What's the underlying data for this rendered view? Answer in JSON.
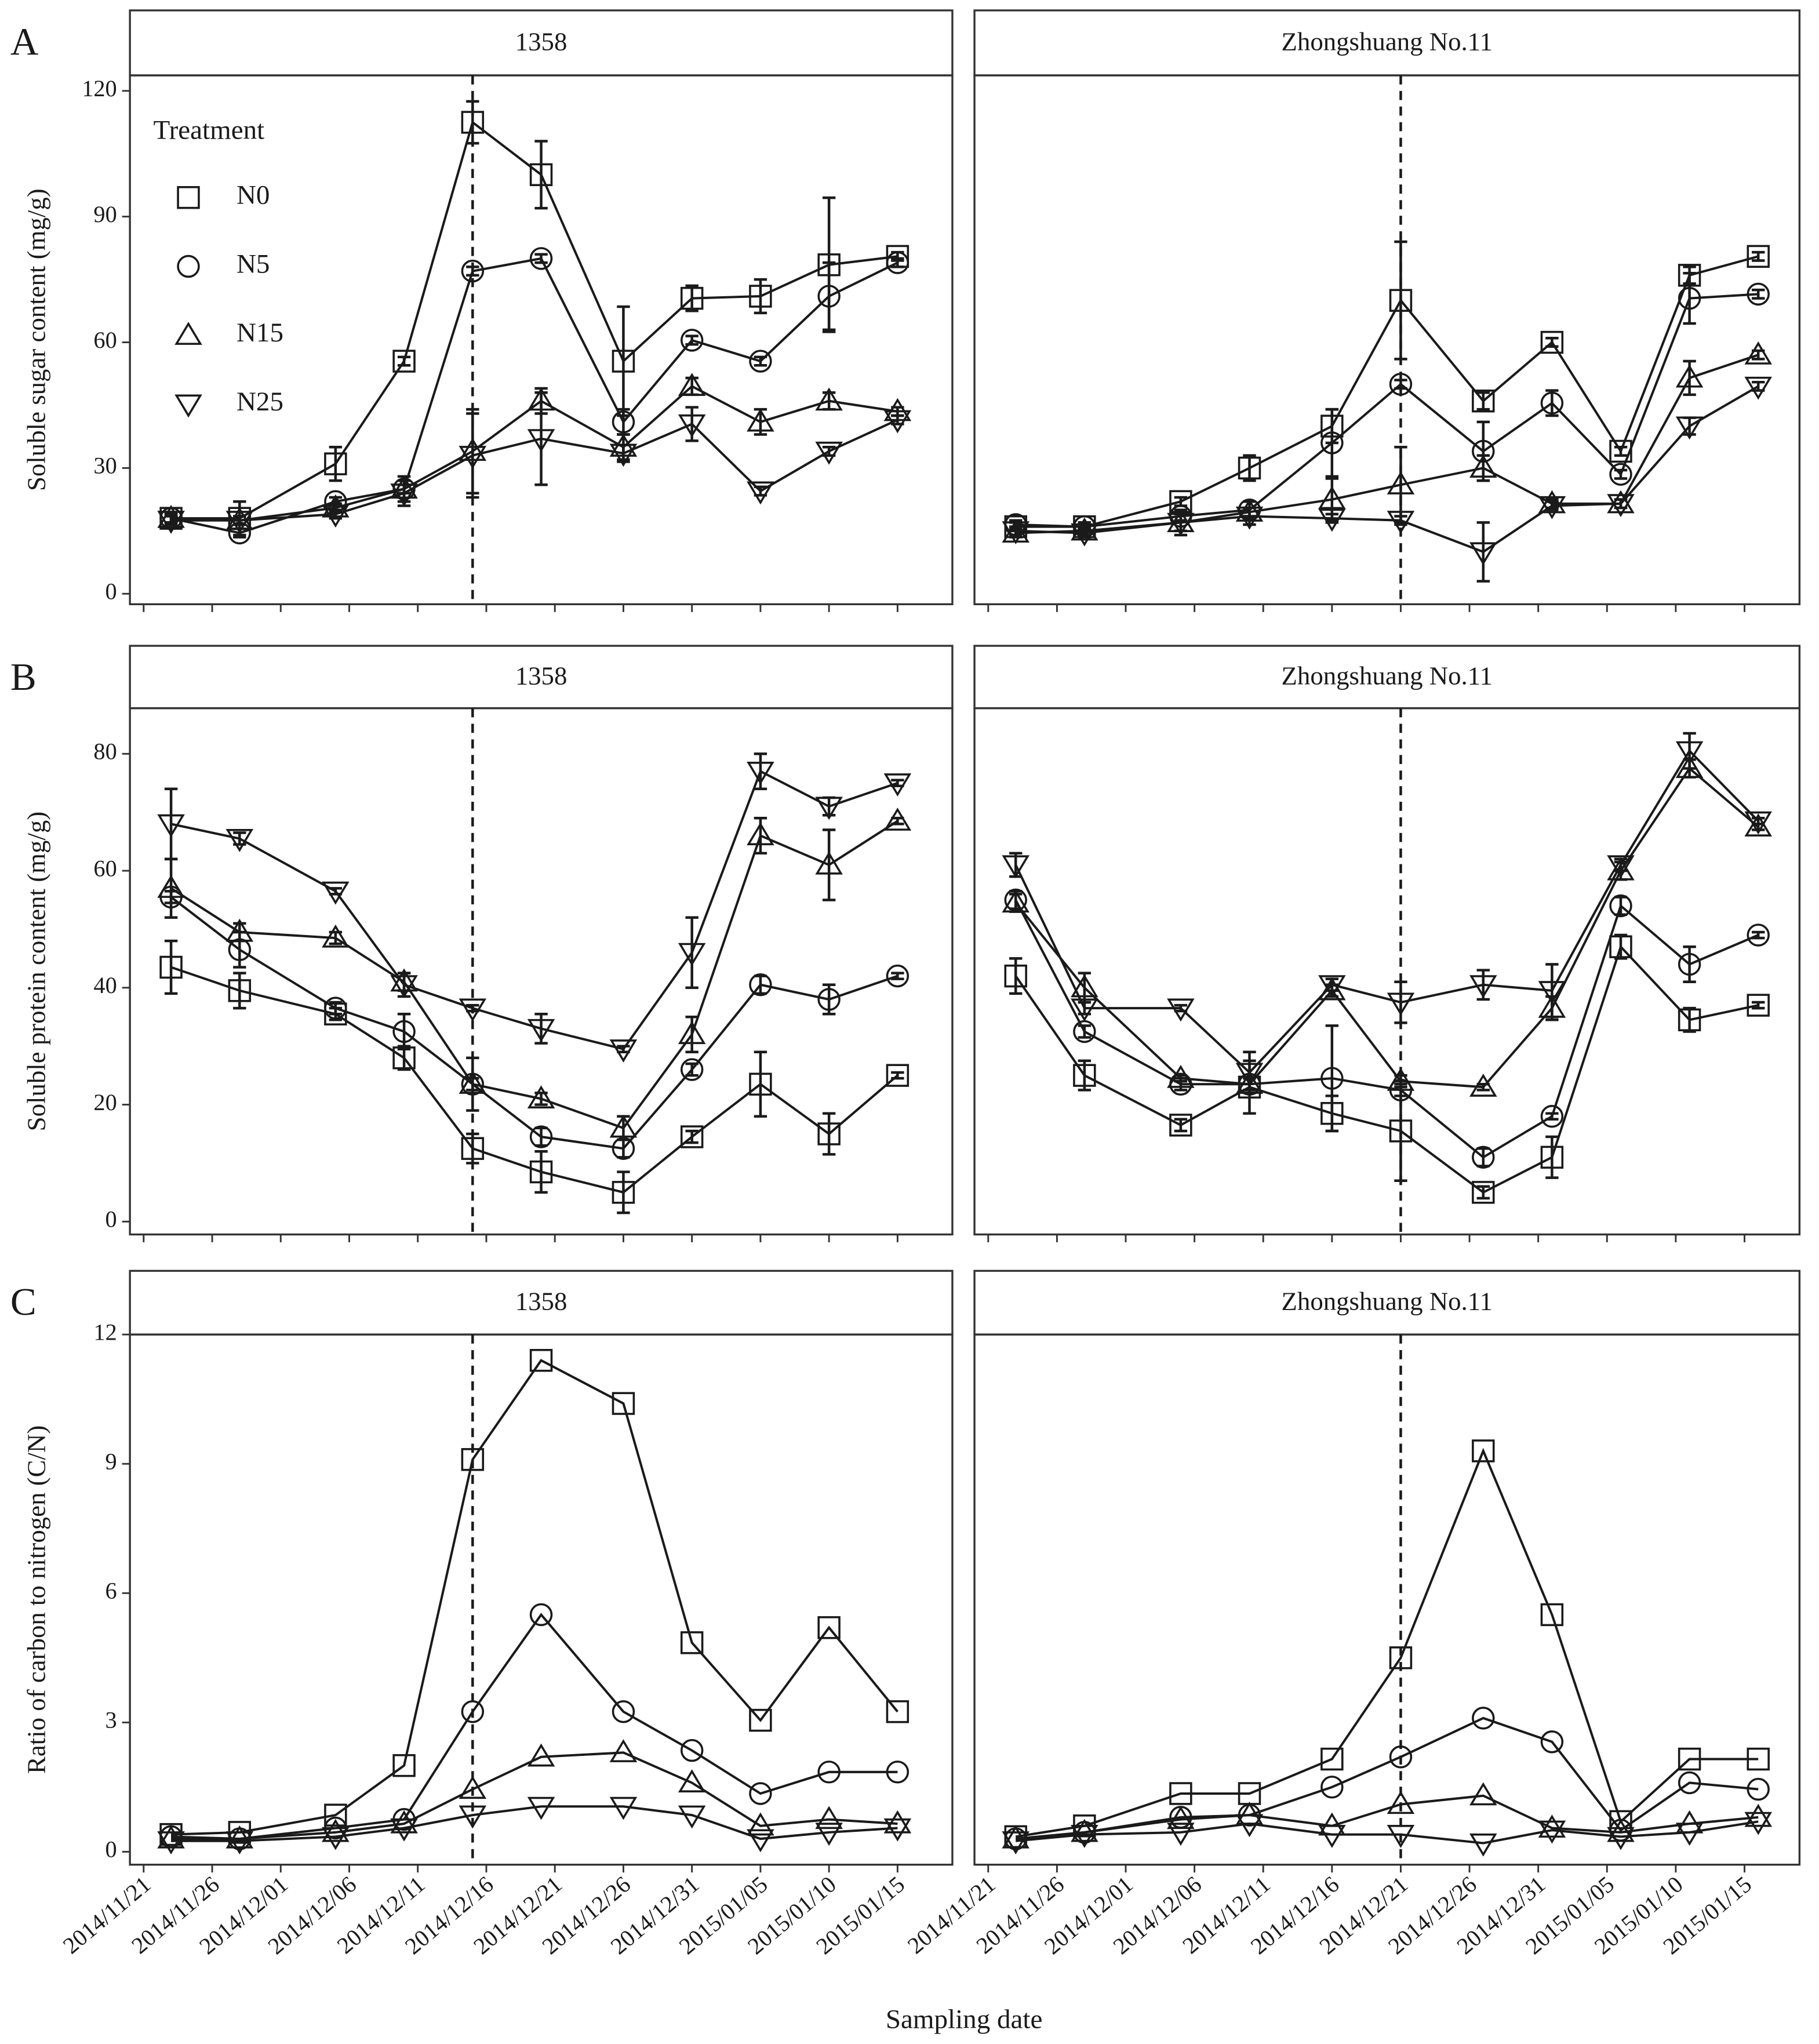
{
  "chart_data": [
    {
      "type": "line",
      "panel_label": "A",
      "ylabel": "Soluble sugar content (mg/g)",
      "color": "#1a1a1a",
      "ylim": [
        -2.5,
        123.7
      ],
      "yticks": [
        0,
        30,
        60,
        90,
        120
      ],
      "xlim": [
        "2014/11/20",
        "2015/01/19"
      ],
      "xticks": [
        "2014/11/21",
        "2014/11/26",
        "2014/12/01",
        "2014/12/06",
        "2014/12/11",
        "2014/12/16",
        "2014/12/21",
        "2014/12/26",
        "2014/12/31",
        "2015/01/05",
        "2015/01/10",
        "2015/01/15"
      ],
      "legend": "top-left",
      "legend_title": "Treatment",
      "panels": [
        {
          "title": "1358",
          "vline": "2014/12/15",
          "x": [
            "2014/11/23",
            "2014/11/28",
            "2014/12/05",
            "2014/12/10",
            "2014/12/15",
            "2014/12/20",
            "2014/12/26",
            "2014/12/31",
            "2015/01/05",
            "2015/01/10",
            "2015/01/15"
          ],
          "series": [
            {
              "name": "N0",
              "marker": "square",
              "values": [
                18,
                18,
                31,
                55.5,
                112.5,
                100,
                55.5,
                70.5,
                71,
                78.5,
                80.5
              ],
              "errors": [
                1,
                4,
                4,
                1,
                5,
                8,
                13,
                3,
                4,
                16,
                1
              ]
            },
            {
              "name": "N5",
              "marker": "circle",
              "values": [
                18,
                14.5,
                22,
                25,
                77,
                80,
                41,
                60.5,
                55.5,
                71,
                79
              ],
              "errors": [
                1,
                1,
                1,
                1,
                1,
                1,
                3,
                1,
                1,
                8,
                1
              ]
            },
            {
              "name": "N15",
              "marker": "triangle-up",
              "values": [
                18,
                17.5,
                20.5,
                25,
                34,
                46,
                35,
                49.5,
                41,
                46,
                43.5
              ],
              "errors": [
                1,
                1,
                1,
                3,
                10,
                3,
                3,
                2,
                3,
                2,
                1
              ]
            },
            {
              "name": "N25",
              "marker": "triangle-down",
              "values": [
                17.5,
                17.5,
                19,
                24,
                33,
                37,
                33.5,
                40.5,
                24.5,
                34,
                41.5
              ],
              "errors": [
                1,
                1,
                1,
                3,
                10,
                11,
                2,
                4,
                1,
                1,
                1
              ]
            }
          ]
        },
        {
          "title": "Zhongshuang No.11",
          "vline": "2014/12/21",
          "x": [
            "2014/11/23",
            "2014/11/28",
            "2014/12/05",
            "2014/12/10",
            "2014/12/16",
            "2014/12/21",
            "2014/12/27",
            "2015/01/01",
            "2015/01/06",
            "2015/01/11",
            "2015/01/16"
          ],
          "series": [
            {
              "marker": "square",
              "values": [
                16,
                16,
                22,
                30,
                40,
                70,
                46,
                60,
                34,
                76,
                80.5
              ],
              "errors": [
                1,
                1,
                1,
                3,
                4,
                14,
                2,
                1,
                1,
                2,
                1
              ]
            },
            {
              "marker": "circle",
              "values": [
                16.5,
                16,
                18.5,
                20,
                36,
                50,
                34,
                45.5,
                28.5,
                70.5,
                71.5
              ],
              "errors": [
                1,
                1,
                1,
                2,
                8,
                1,
                7,
                3,
                1,
                6,
                1
              ]
            },
            {
              "marker": "triangle-up",
              "values": [
                14.5,
                15,
                17,
                19.5,
                22.5,
                26,
                30,
                21.5,
                21.5,
                51.5,
                57
              ],
              "errors": [
                1,
                1,
                2,
                1,
                5,
                9,
                3,
                1,
                1,
                4,
                1
              ]
            },
            {
              "marker": "triangle-down",
              "values": [
                15,
                14.5,
                17,
                18.5,
                18,
                17.5,
                10,
                21,
                21.5,
                40,
                49.5
              ],
              "errors": [
                1,
                1,
                3,
                2,
                1,
                1,
                7,
                1,
                1,
                2,
                1
              ]
            }
          ]
        }
      ]
    },
    {
      "type": "line",
      "panel_label": "B",
      "ylabel": "Soluble protein content (mg/g)",
      "color": "#1a1a1a",
      "ylim": [
        -2.2,
        87.8
      ],
      "yticks": [
        0,
        20,
        40,
        60,
        80
      ],
      "xlim": [
        "2014/11/20",
        "2015/01/19"
      ],
      "xticks": [
        "2014/11/21",
        "2014/11/26",
        "2014/12/01",
        "2014/12/06",
        "2014/12/11",
        "2014/12/16",
        "2014/12/21",
        "2014/12/26",
        "2014/12/31",
        "2015/01/05",
        "2015/01/10",
        "2015/01/15"
      ],
      "panels": [
        {
          "title": "1358",
          "vline": "2014/12/15",
          "x": [
            "2014/11/23",
            "2014/11/28",
            "2014/12/05",
            "2014/12/10",
            "2014/12/15",
            "2014/12/20",
            "2014/12/26",
            "2014/12/31",
            "2015/01/05",
            "2015/01/10",
            "2015/01/15"
          ],
          "series": [
            {
              "marker": "square",
              "values": [
                43.5,
                39.5,
                35.5,
                28,
                12.5,
                8.5,
                5,
                14.5,
                23.5,
                15,
                25
              ],
              "errors": [
                4.5,
                3,
                1,
                2,
                2.5,
                3.5,
                3.5,
                1,
                5.5,
                3.5,
                0.5
              ]
            },
            {
              "marker": "circle",
              "values": [
                55.5,
                46.5,
                36.5,
                32.5,
                23.5,
                14.5,
                12.5,
                26,
                40.5,
                38,
                42
              ],
              "errors": [
                1,
                3,
                1,
                3,
                1,
                1.5,
                1.5,
                1,
                1.5,
                2.5,
                0.5
              ]
            },
            {
              "marker": "triangle-up",
              "values": [
                57,
                49.5,
                48.5,
                41,
                23.5,
                21,
                16,
                32,
                66,
                61,
                68.5
              ],
              "errors": [
                5,
                1.5,
                1,
                1.5,
                4.5,
                1,
                2,
                3,
                3,
                6,
                0.5
              ]
            },
            {
              "marker": "triangle-down",
              "values": [
                68,
                65.5,
                56.5,
                40.5,
                36.5,
                33,
                29.5,
                46,
                77,
                71,
                75
              ],
              "errors": [
                6,
                1,
                0.5,
                2,
                0.5,
                2.5,
                0.5,
                6,
                3,
                1.5,
                0.5
              ]
            }
          ]
        },
        {
          "title": "Zhongshuang No.11",
          "vline": "2014/12/21",
          "x": [
            "2014/11/23",
            "2014/11/28",
            "2014/12/05",
            "2014/12/10",
            "2014/12/16",
            "2014/12/21",
            "2014/12/27",
            "2015/01/01",
            "2015/01/06",
            "2015/01/11",
            "2015/01/16"
          ],
          "series": [
            {
              "marker": "square",
              "values": [
                42,
                25,
                16.5,
                23,
                18.5,
                15.5,
                5,
                11,
                47,
                34.5,
                37
              ],
              "errors": [
                3,
                2.5,
                1,
                4.5,
                3,
                8.5,
                1,
                3.5,
                2,
                2,
                0.5
              ]
            },
            {
              "marker": "circle",
              "values": [
                55,
                32.5,
                23.5,
                23.5,
                24.5,
                22.5,
                11,
                18,
                54,
                44,
                49
              ],
              "errors": [
                1.5,
                1,
                1,
                1,
                9,
                1,
                1.5,
                0.5,
                1.5,
                3,
                0.5
              ]
            },
            {
              "marker": "triangle-up",
              "values": [
                54.5,
                40,
                24.5,
                23.5,
                39.5,
                24,
                23,
                36.5,
                60,
                77.5,
                67.5
              ],
              "errors": [
                1.5,
                2.5,
                0.5,
                1,
                1,
                1,
                0.5,
                2,
                1.5,
                1.5,
                0.5
              ]
            },
            {
              "marker": "triangle-down",
              "values": [
                61,
                36.5,
                36.5,
                25.5,
                40.5,
                37.5,
                40.5,
                39.5,
                61,
                80.5,
                68.5
              ],
              "errors": [
                2,
                1,
                0.5,
                3.5,
                1,
                3.5,
                2.5,
                4.5,
                1,
                3,
                0.5
              ]
            }
          ]
        }
      ]
    },
    {
      "type": "line",
      "panel_label": "C",
      "ylabel": "Ratio of carbon to nitrogen (C/N)",
      "xlabel": "Sampling date",
      "color": "#1a1a1a",
      "ylim": [
        -0.3,
        12
      ],
      "yticks": [
        0,
        3,
        6,
        9,
        12
      ],
      "xlim": [
        "2014/11/20",
        "2015/01/19"
      ],
      "xticks": [
        "2014/11/21",
        "2014/11/26",
        "2014/12/01",
        "2014/12/06",
        "2014/12/11",
        "2014/12/16",
        "2014/12/21",
        "2014/12/26",
        "2014/12/31",
        "2015/01/05",
        "2015/01/10",
        "2015/01/15"
      ],
      "panels": [
        {
          "title": "1358",
          "vline": "2014/12/15",
          "x": [
            "2014/11/23",
            "2014/11/28",
            "2014/12/05",
            "2014/12/10",
            "2014/12/15",
            "2014/12/20",
            "2014/12/26",
            "2014/12/31",
            "2015/01/05",
            "2015/01/10",
            "2015/01/15"
          ],
          "series": [
            {
              "marker": "square",
              "values": [
                0.4,
                0.45,
                0.85,
                2,
                9.1,
                11.4,
                10.4,
                4.85,
                3.05,
                5.2,
                3.25
              ]
            },
            {
              "marker": "circle",
              "values": [
                0.35,
                0.3,
                0.55,
                0.75,
                3.25,
                5.5,
                3.25,
                2.35,
                1.35,
                1.85,
                1.85
              ]
            },
            {
              "marker": "triangle-up",
              "values": [
                0.3,
                0.3,
                0.45,
                0.65,
                1.45,
                2.2,
                2.3,
                1.6,
                0.6,
                0.75,
                0.65
              ]
            },
            {
              "marker": "triangle-down",
              "values": [
                0.25,
                0.25,
                0.35,
                0.55,
                0.85,
                1.05,
                1.05,
                0.85,
                0.3,
                0.45,
                0.55
              ]
            }
          ]
        },
        {
          "title": "Zhongshuang No.11",
          "vline": "2014/12/21",
          "x": [
            "2014/11/23",
            "2014/11/28",
            "2014/12/05",
            "2014/12/10",
            "2014/12/16",
            "2014/12/21",
            "2014/12/27",
            "2015/01/01",
            "2015/01/06",
            "2015/01/11",
            "2015/01/16"
          ],
          "series": [
            {
              "marker": "square",
              "values": [
                0.35,
                0.6,
                1.35,
                1.35,
                2.15,
                4.5,
                9.3,
                5.5,
                0.7,
                2.15,
                2.15
              ]
            },
            {
              "marker": "circle",
              "values": [
                0.3,
                0.45,
                0.8,
                0.85,
                1.5,
                2.2,
                3.1,
                2.55,
                0.5,
                1.6,
                1.45
              ]
            },
            {
              "marker": "triangle-up",
              "values": [
                0.3,
                0.45,
                0.75,
                0.85,
                0.6,
                1.1,
                1.3,
                0.55,
                0.45,
                0.65,
                0.8
              ]
            },
            {
              "marker": "triangle-down",
              "values": [
                0.25,
                0.4,
                0.45,
                0.65,
                0.4,
                0.4,
                0.2,
                0.5,
                0.35,
                0.45,
                0.7
              ]
            }
          ]
        }
      ]
    }
  ]
}
